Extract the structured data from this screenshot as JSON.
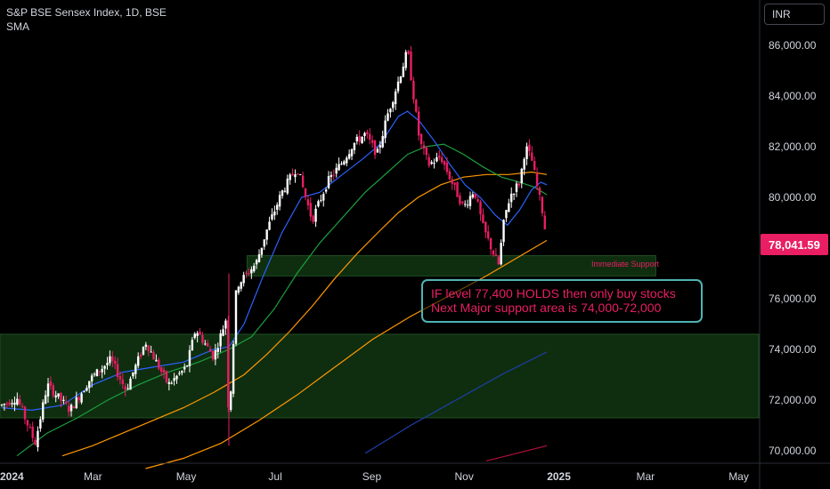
{
  "header": {
    "title": "S&P BSE Sensex Index, 1D, BSE",
    "indicator": "SMA"
  },
  "currency_button": "INR",
  "colors": {
    "background": "#000000",
    "up": "#ffffff",
    "down": "#e91e63",
    "sma_fast": "#2962ff",
    "sma_mid": "#1b9e3e",
    "sma_slow": "#ff9800",
    "sma_slowest": "#1e3fa8",
    "sma_longest": "#b0103a",
    "zone_fill": "#0f2e10",
    "callout_border": "#4fb3b3",
    "callout_text": "#e91e63",
    "price_label_bg": "#e91e63"
  },
  "chart_data": {
    "type": "candlestick",
    "ylim": [
      69500,
      87500
    ],
    "y_ticks": [
      "86,000.00",
      "84,000.00",
      "82,000.00",
      "80,000.00",
      "78,000.00",
      "76,000.00",
      "74,000.00",
      "72,000.00",
      "70,000.00"
    ],
    "y_tick_values": [
      86000,
      84000,
      82000,
      80000,
      78000,
      76000,
      74000,
      72000,
      70000
    ],
    "x_ticks": [
      "2024",
      "Mar",
      "May",
      "Jul",
      "Sep",
      "Nov",
      "2025",
      "Mar",
      "May"
    ],
    "x_tick_days": [
      0,
      60,
      121,
      182,
      244,
      305,
      366,
      425,
      486
    ],
    "last_price": 78041.59,
    "last_price_label": "78,041.59",
    "price_path": [
      [
        0,
        71800
      ],
      [
        10,
        72100
      ],
      [
        22,
        70300
      ],
      [
        30,
        72600
      ],
      [
        45,
        71600
      ],
      [
        58,
        72800
      ],
      [
        72,
        73600
      ],
      [
        82,
        72400
      ],
      [
        95,
        74300
      ],
      [
        110,
        72600
      ],
      [
        122,
        73300
      ],
      [
        128,
        74800
      ],
      [
        140,
        73700
      ],
      [
        148,
        75200
      ],
      [
        150,
        71000
      ],
      [
        155,
        76500
      ],
      [
        168,
        77400
      ],
      [
        175,
        78700
      ],
      [
        185,
        80200
      ],
      [
        195,
        81200
      ],
      [
        205,
        79100
      ],
      [
        215,
        80600
      ],
      [
        225,
        81400
      ],
      [
        232,
        82100
      ],
      [
        240,
        82500
      ],
      [
        248,
        81700
      ],
      [
        255,
        83300
      ],
      [
        262,
        84600
      ],
      [
        268,
        85800
      ],
      [
        272,
        84000
      ],
      [
        276,
        82200
      ],
      [
        282,
        81300
      ],
      [
        290,
        81600
      ],
      [
        298,
        80500
      ],
      [
        305,
        79600
      ],
      [
        312,
        80300
      ],
      [
        318,
        78800
      ],
      [
        324,
        77900
      ],
      [
        328,
        77300
      ],
      [
        332,
        79200
      ],
      [
        336,
        80100
      ],
      [
        342,
        80600
      ],
      [
        346,
        82000
      ],
      [
        350,
        81500
      ],
      [
        354,
        80300
      ],
      [
        358,
        79200
      ],
      [
        360,
        78041
      ]
    ],
    "sma_fast_path": [
      [
        0,
        71700
      ],
      [
        20,
        71600
      ],
      [
        40,
        71800
      ],
      [
        60,
        72600
      ],
      [
        80,
        73100
      ],
      [
        100,
        73300
      ],
      [
        120,
        73500
      ],
      [
        140,
        74000
      ],
      [
        150,
        74100
      ],
      [
        160,
        75000
      ],
      [
        172,
        76800
      ],
      [
        185,
        78600
      ],
      [
        198,
        80000
      ],
      [
        210,
        80200
      ],
      [
        225,
        80900
      ],
      [
        238,
        81500
      ],
      [
        250,
        82100
      ],
      [
        262,
        83200
      ],
      [
        268,
        83400
      ],
      [
        276,
        83000
      ],
      [
        286,
        82200
      ],
      [
        296,
        81300
      ],
      [
        306,
        80500
      ],
      [
        316,
        80000
      ],
      [
        326,
        79300
      ],
      [
        334,
        78900
      ],
      [
        342,
        79500
      ],
      [
        350,
        80300
      ],
      [
        356,
        80600
      ],
      [
        360,
        80500
      ]
    ],
    "sma_mid_path": [
      [
        10,
        69800
      ],
      [
        30,
        70700
      ],
      [
        50,
        71300
      ],
      [
        70,
        72000
      ],
      [
        90,
        72600
      ],
      [
        110,
        73100
      ],
      [
        130,
        73500
      ],
      [
        150,
        74000
      ],
      [
        165,
        74500
      ],
      [
        180,
        75600
      ],
      [
        195,
        77000
      ],
      [
        210,
        78200
      ],
      [
        225,
        79200
      ],
      [
        240,
        80200
      ],
      [
        255,
        81000
      ],
      [
        268,
        81700
      ],
      [
        280,
        82000
      ],
      [
        292,
        82100
      ],
      [
        305,
        81700
      ],
      [
        318,
        81200
      ],
      [
        330,
        80800
      ],
      [
        342,
        80600
      ],
      [
        352,
        80400
      ],
      [
        360,
        80100
      ]
    ],
    "sma_slow_path": [
      [
        40,
        69800
      ],
      [
        60,
        70200
      ],
      [
        80,
        70700
      ],
      [
        100,
        71200
      ],
      [
        120,
        71700
      ],
      [
        140,
        72300
      ],
      [
        160,
        73000
      ],
      [
        175,
        73800
      ],
      [
        190,
        74700
      ],
      [
        205,
        75700
      ],
      [
        220,
        76800
      ],
      [
        235,
        77800
      ],
      [
        250,
        78700
      ],
      [
        262,
        79400
      ],
      [
        275,
        80000
      ],
      [
        290,
        80500
      ],
      [
        305,
        80800
      ],
      [
        320,
        80900
      ],
      [
        335,
        80900
      ],
      [
        350,
        81000
      ],
      [
        360,
        80900
      ]
    ],
    "sma_slow_support_path": [
      [
        95,
        69300
      ],
      [
        120,
        69700
      ],
      [
        145,
        70300
      ],
      [
        170,
        71200
      ],
      [
        195,
        72200
      ],
      [
        220,
        73300
      ],
      [
        245,
        74400
      ],
      [
        270,
        75300
      ],
      [
        295,
        76100
      ],
      [
        320,
        76900
      ],
      [
        340,
        77600
      ],
      [
        360,
        78300
      ]
    ],
    "sma_slowest_path": [
      [
        240,
        69900
      ],
      [
        270,
        71000
      ],
      [
        300,
        72000
      ],
      [
        330,
        73000
      ],
      [
        360,
        73900
      ]
    ],
    "sma_longest_path": [
      [
        320,
        69600
      ],
      [
        340,
        69900
      ],
      [
        360,
        70200
      ]
    ],
    "zones": [
      {
        "name": "immediate-support",
        "from_day": 162,
        "to_day": 432,
        "low": 76900,
        "high": 77700
      },
      {
        "name": "major-support",
        "from_day": -10,
        "to_day": 500,
        "low": 71300,
        "high": 74600
      }
    ],
    "annotations": {
      "immediate_support": "Immediate Support",
      "callout_line1": "IF level 77,400 HOLDS then only buy stocks",
      "callout_line2": "Next Major support area is 74,000-72,000"
    }
  }
}
